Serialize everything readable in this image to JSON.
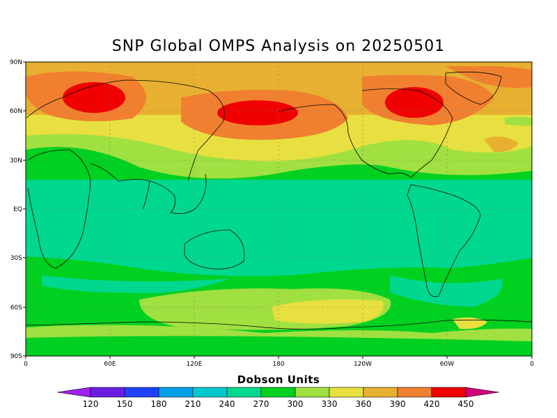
{
  "title": "SNP Global OMPS Analysis on 20250501",
  "colorbar": {
    "title": "Dobson Units",
    "levels": [
      "120",
      "150",
      "180",
      "210",
      "240",
      "270",
      "300",
      "330",
      "360",
      "390",
      "420",
      "450"
    ],
    "colors": [
      "#a020f0",
      "#6a1fe0",
      "#2040ff",
      "#00a0e8",
      "#00c8d0",
      "#00d890",
      "#00d020",
      "#a0e040",
      "#e8e040",
      "#e8b030",
      "#f08030",
      "#f00000",
      "#e0207a",
      "#d0007a"
    ]
  },
  "axes": {
    "lat_labels": [
      "90N",
      "60N",
      "30N",
      "EQ",
      "30S",
      "60S",
      "90S"
    ],
    "lon_labels": [
      "0",
      "60E",
      "120E",
      "180",
      "120W",
      "60W",
      "0"
    ]
  },
  "palette": {
    "ocean_tropics": "#00d890",
    "c300": "#00d020",
    "c330": "#a0e040",
    "c360": "#e8e040",
    "c390": "#e8b030",
    "c420": "#f08030",
    "c450": "#f00000"
  }
}
